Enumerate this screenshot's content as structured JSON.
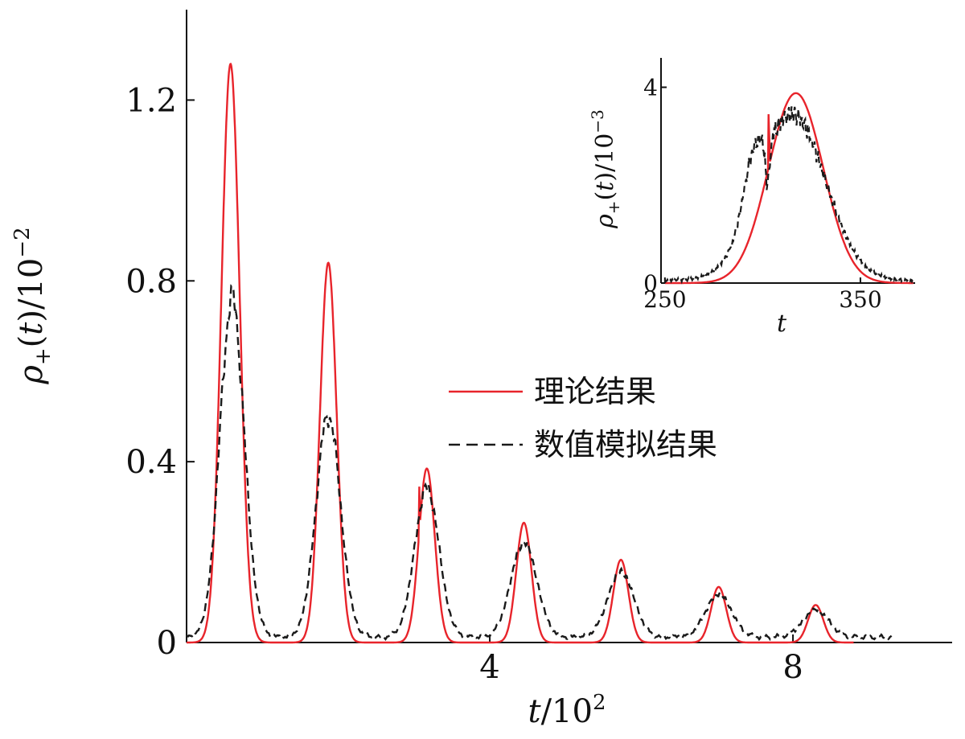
{
  "colors": {
    "theory": "#e8242b",
    "simulation": "#1a1a1a",
    "axis": "#111111"
  },
  "legend": {
    "theory_label": "理论结果",
    "simulation_label": "数值模拟结果"
  },
  "chart_data": [
    {
      "type": "line",
      "xlabel": "t / 10^2",
      "ylabel": "ρ+(t) / 10^-2",
      "x_unit_scale": 100,
      "xlim": [
        0,
        10.1
      ],
      "ylim": [
        0,
        1.4
      ],
      "xticks": [
        4,
        8
      ],
      "xtick_labels": [
        "4",
        "8"
      ],
      "yticks": [
        0,
        0.4,
        0.8,
        1.2
      ],
      "ytick_labels": [
        "0",
        "0.4",
        "0.8",
        "1.2"
      ],
      "grid": false,
      "legend_position": "center-right",
      "series": [
        {
          "name": "理论结果",
          "style": "solid",
          "peaks": [
            {
              "x": 0.58,
              "y": 1.28,
              "w": 0.12
            },
            {
              "x": 1.87,
              "y": 0.84,
              "w": 0.11
            },
            {
              "x": 3.17,
              "y": 0.385,
              "w": 0.105,
              "spike": {
                "x": 3.07,
                "y": 0.345
              }
            },
            {
              "x": 4.45,
              "y": 0.265,
              "w": 0.1
            },
            {
              "x": 5.73,
              "y": 0.183,
              "w": 0.1
            },
            {
              "x": 7.02,
              "y": 0.123,
              "w": 0.1
            },
            {
              "x": 8.3,
              "y": 0.083,
              "w": 0.1
            }
          ]
        },
        {
          "name": "数值模拟结果",
          "style": "dashed",
          "peaks": [
            {
              "x": 0.6,
              "y": 0.75,
              "w": 0.16
            },
            {
              "x": 1.87,
              "y": 0.49,
              "w": 0.16
            },
            {
              "x": 3.17,
              "y": 0.33,
              "w": 0.16
            },
            {
              "x": 4.45,
              "y": 0.21,
              "w": 0.17
            },
            {
              "x": 5.73,
              "y": 0.145,
              "w": 0.17
            },
            {
              "x": 7.02,
              "y": 0.095,
              "w": 0.17
            },
            {
              "x": 8.3,
              "y": 0.06,
              "w": 0.17
            }
          ]
        }
      ]
    },
    {
      "type": "line",
      "xlabel": "t",
      "ylabel": "ρ+(t) / 10^-3",
      "xlim": [
        248,
        378
      ],
      "ylim": [
        0,
        4.6
      ],
      "xticks": [
        250,
        350
      ],
      "xtick_labels": [
        "250",
        "350"
      ],
      "yticks": [
        0,
        4
      ],
      "ytick_labels": [
        "0",
        "4"
      ],
      "grid": false,
      "series": [
        {
          "name": "理论结果",
          "style": "solid",
          "peak": {
            "x": 317,
            "y": 3.88,
            "w": 14
          },
          "spike": {
            "x": 303,
            "y": 3.45
          }
        },
        {
          "name": "数值模拟结果",
          "style": "dashed",
          "peak": {
            "x": 315,
            "y": 3.4,
            "w": 17
          },
          "shoulder": {
            "x": 295,
            "y": 1.75
          }
        }
      ]
    }
  ]
}
